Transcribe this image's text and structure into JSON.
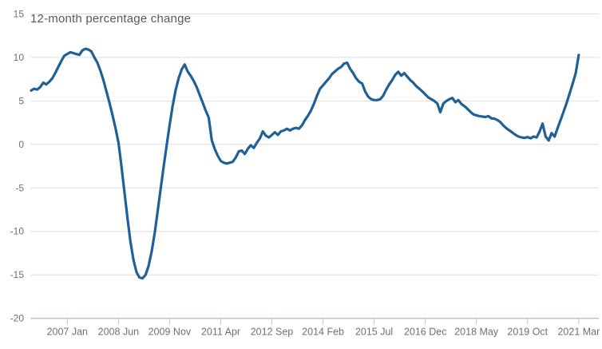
{
  "chart": {
    "title": "12-month percentage change",
    "title_color": "#595959",
    "line_color": "#206095",
    "grid_color": "#dedede",
    "axis_line_color": "#b4c6dc",
    "tick_color": "#c3c3c3",
    "label_color": "#707070"
  },
  "chart_data": {
    "type": "line",
    "title": "12-month percentage change",
    "x_start": "2006-01",
    "x_end": "2021-03",
    "frequency": "monthly",
    "ylim": [
      -20,
      15
    ],
    "y_ticks": [
      15,
      10,
      5,
      0,
      -5,
      -10,
      -15,
      -20
    ],
    "x_tick_labels": [
      "2007 Jan",
      "2008 Jun",
      "2009 Nov",
      "2011 Apr",
      "2012 Sep",
      "2014 Feb",
      "2015 Jul",
      "2016 Dec",
      "2018 May",
      "2019 Oct",
      "2021 Mar"
    ],
    "x_tick_interval_months": 17,
    "grid": "horizontal",
    "legend": "none",
    "series": [
      {
        "name": "12-month percentage change",
        "values": [
          6.2,
          6.4,
          6.3,
          6.6,
          7.1,
          6.9,
          7.2,
          7.6,
          8.2,
          8.9,
          9.6,
          10.2,
          10.4,
          10.6,
          10.5,
          10.4,
          10.3,
          10.8,
          11.0,
          10.9,
          10.7,
          10.0,
          9.4,
          8.5,
          7.4,
          6.1,
          4.8,
          3.4,
          1.9,
          0.2,
          -2.5,
          -5.5,
          -8.5,
          -11.2,
          -13.3,
          -14.7,
          -15.3,
          -15.4,
          -15.0,
          -14.0,
          -12.4,
          -10.3,
          -7.8,
          -5.2,
          -2.6,
          -0.2,
          2.2,
          4.4,
          6.2,
          7.6,
          8.6,
          9.2,
          8.4,
          7.9,
          7.3,
          6.6,
          5.7,
          4.8,
          3.9,
          3.1,
          0.5,
          -0.5,
          -1.3,
          -1.9,
          -2.1,
          -2.2,
          -2.1,
          -2.0,
          -1.5,
          -0.8,
          -0.7,
          -1.1,
          -0.5,
          -0.1,
          -0.4,
          0.2,
          0.7,
          1.5,
          1.0,
          0.8,
          1.1,
          1.4,
          1.1,
          1.5,
          1.6,
          1.8,
          1.6,
          1.8,
          1.9,
          1.8,
          2.2,
          2.8,
          3.3,
          3.9,
          4.7,
          5.6,
          6.4,
          6.8,
          7.2,
          7.6,
          8.1,
          8.4,
          8.7,
          8.9,
          9.3,
          9.4,
          8.7,
          8.2,
          7.6,
          7.2,
          7.0,
          6.1,
          5.5,
          5.2,
          5.1,
          5.1,
          5.2,
          5.6,
          6.3,
          6.9,
          7.4,
          8.0,
          8.35,
          7.9,
          8.2,
          7.8,
          7.4,
          7.1,
          6.7,
          6.4,
          6.1,
          5.75,
          5.4,
          5.2,
          5.0,
          4.7,
          3.7,
          4.7,
          5.0,
          5.2,
          5.35,
          4.85,
          5.1,
          4.65,
          4.4,
          4.1,
          3.75,
          3.45,
          3.35,
          3.25,
          3.2,
          3.15,
          3.25,
          3.0,
          2.95,
          2.8,
          2.55,
          2.15,
          1.85,
          1.6,
          1.35,
          1.1,
          0.9,
          0.8,
          0.75,
          0.85,
          0.7,
          0.9,
          0.8,
          1.5,
          2.4,
          0.9,
          0.45,
          1.3,
          0.9,
          1.9,
          2.85,
          3.8,
          4.8,
          5.9,
          7.0,
          8.2,
          10.3
        ]
      }
    ]
  }
}
